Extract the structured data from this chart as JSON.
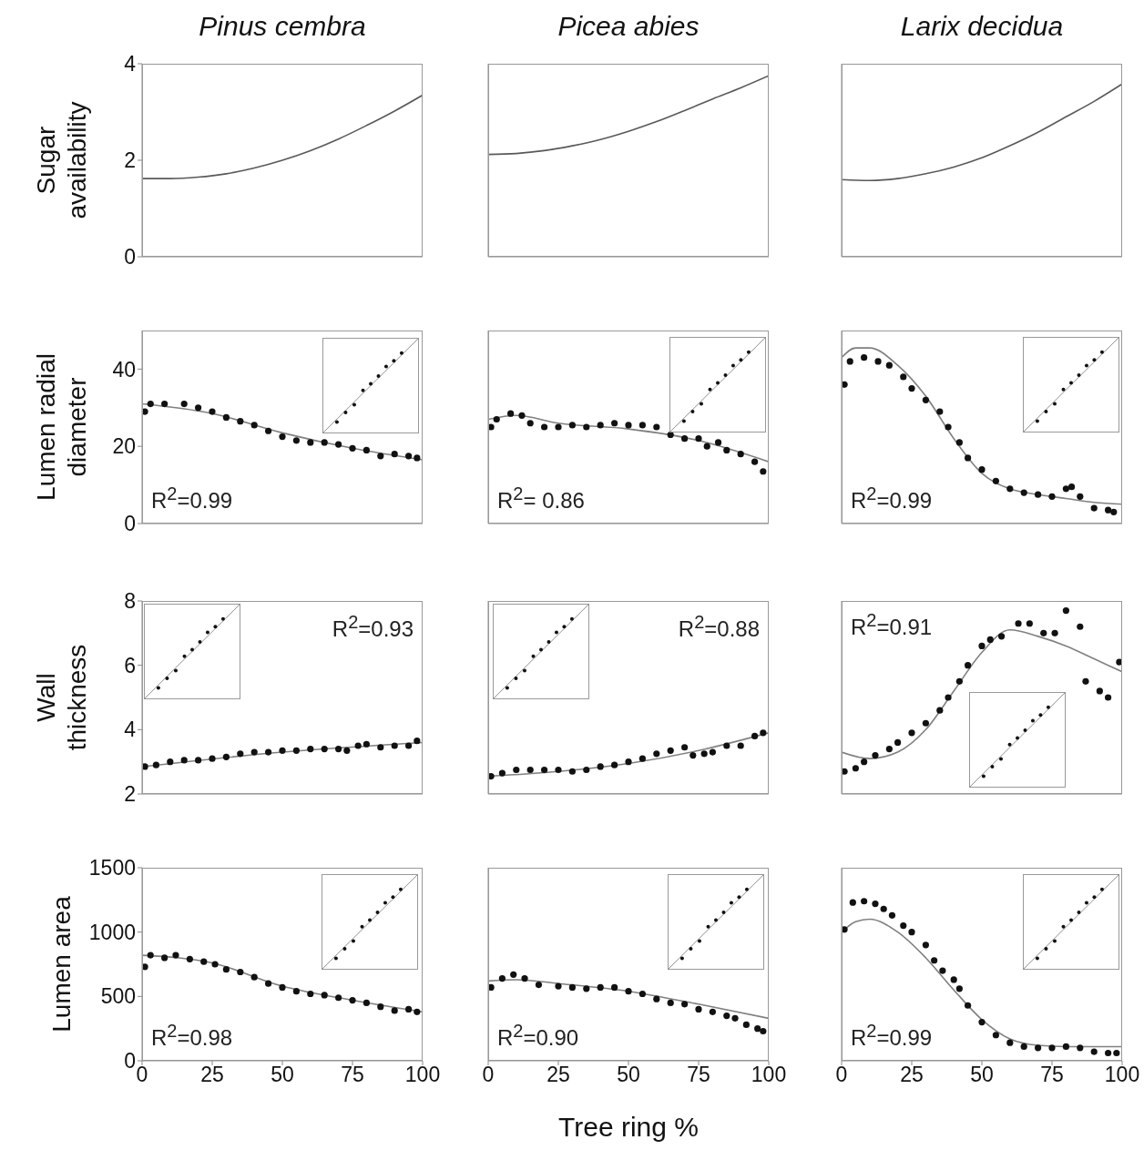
{
  "chart_data": [
    {
      "type": "line",
      "title": "Pinus cembra",
      "ylabel": "Sugar\navailability",
      "xlim": [
        0,
        100
      ],
      "xticks": [
        0,
        25,
        50,
        75,
        100
      ],
      "ylim": [
        0,
        4
      ],
      "yticks": [
        0,
        2,
        4
      ],
      "tick_labels": "y",
      "series": [
        {
          "color": "#595959",
          "x": [
            0,
            10,
            20,
            30,
            40,
            50,
            60,
            70,
            80,
            90,
            100
          ],
          "values": [
            1.62,
            1.62,
            1.65,
            1.72,
            1.84,
            2.0,
            2.2,
            2.44,
            2.72,
            3.02,
            3.35
          ]
        }
      ]
    },
    {
      "type": "line",
      "title": "Picea abies",
      "xlim": [
        0,
        100
      ],
      "xticks": [
        0,
        25,
        50,
        75,
        100
      ],
      "ylim": [
        0,
        4
      ],
      "yticks": [
        0,
        2,
        4
      ],
      "tick_labels": false,
      "series": [
        {
          "color": "#595959",
          "x": [
            0,
            10,
            20,
            30,
            40,
            50,
            60,
            70,
            80,
            90,
            100
          ],
          "values": [
            2.12,
            2.14,
            2.2,
            2.3,
            2.43,
            2.6,
            2.8,
            3.03,
            3.27,
            3.5,
            3.75
          ]
        }
      ]
    },
    {
      "type": "line",
      "title": "Larix decidua",
      "xlim": [
        0,
        100
      ],
      "xticks": [
        0,
        25,
        50,
        75,
        100
      ],
      "ylim": [
        0,
        4
      ],
      "yticks": [
        0,
        2,
        4
      ],
      "tick_labels": false,
      "series": [
        {
          "color": "#595959",
          "x": [
            0,
            10,
            20,
            30,
            40,
            50,
            60,
            70,
            80,
            90,
            100
          ],
          "values": [
            1.6,
            1.58,
            1.62,
            1.72,
            1.86,
            2.05,
            2.3,
            2.58,
            2.9,
            3.22,
            3.58
          ]
        }
      ]
    },
    {
      "type": "scatter",
      "ylabel": "Lumen radial\ndiameter",
      "xlim": [
        0,
        100
      ],
      "xticks": [
        0,
        25,
        50,
        75,
        100
      ],
      "ylim": [
        0,
        50
      ],
      "yticks": [
        0,
        20,
        40
      ],
      "tick_labels": "y",
      "annotations": [
        "R$^{2}$=0.99"
      ],
      "series": [
        {
          "marker": "circle",
          "color": "#111111",
          "x": [
            1,
            3,
            8,
            15,
            20,
            25,
            30,
            35,
            40,
            45,
            50,
            55,
            60,
            65,
            70,
            75,
            80,
            85,
            90,
            95,
            98
          ],
          "values": [
            29,
            31,
            31,
            31,
            30,
            29,
            27.5,
            26.5,
            25.5,
            24,
            22.5,
            21.5,
            21,
            21,
            20.5,
            19.5,
            19,
            17.5,
            18,
            17.5,
            17
          ]
        },
        {
          "type": "line",
          "color": "#808080",
          "x": [
            0,
            25,
            50,
            75,
            100
          ],
          "values": [
            31,
            28.5,
            23.5,
            19.5,
            16.5
          ]
        }
      ]
    },
    {
      "type": "scatter",
      "xlim": [
        0,
        100
      ],
      "xticks": [
        0,
        25,
        50,
        75,
        100
      ],
      "ylim": [
        0,
        50
      ],
      "yticks": [
        0,
        20,
        40
      ],
      "tick_labels": false,
      "annotations": [
        "R$^{2}$= 0.86"
      ],
      "series": [
        {
          "marker": "circle",
          "color": "#111111",
          "x": [
            1,
            3,
            8,
            12,
            15,
            20,
            25,
            30,
            35,
            40,
            45,
            50,
            55,
            60,
            65,
            70,
            75,
            78,
            82,
            85,
            90,
            95,
            98
          ],
          "values": [
            25,
            27,
            28.5,
            28,
            26,
            25,
            25,
            25.5,
            25,
            25.5,
            26,
            25.5,
            25.5,
            25,
            23,
            22,
            22,
            20,
            21,
            19,
            18,
            16,
            13.5
          ]
        },
        {
          "type": "line",
          "color": "#808080",
          "x": [
            0,
            10,
            25,
            50,
            75,
            100
          ],
          "values": [
            27,
            28,
            26,
            24.5,
            21.5,
            16
          ]
        }
      ]
    },
    {
      "type": "scatter",
      "xlim": [
        0,
        100
      ],
      "xticks": [
        0,
        25,
        50,
        75,
        100
      ],
      "ylim": [
        0,
        50
      ],
      "yticks": [
        0,
        20,
        40
      ],
      "tick_labels": false,
      "annotations": [
        "R$^{2}$=0.99"
      ],
      "series": [
        {
          "marker": "circle",
          "color": "#111111",
          "x": [
            1,
            3,
            8,
            13,
            17,
            22,
            25,
            30,
            35,
            38,
            42,
            45,
            50,
            55,
            60,
            65,
            70,
            75,
            80,
            82,
            85,
            90,
            95,
            97
          ],
          "values": [
            36,
            42,
            43,
            42,
            41,
            38,
            35,
            32,
            29,
            25,
            21,
            17,
            14,
            11,
            9,
            8,
            7.5,
            7,
            9,
            9.5,
            7,
            4,
            3.5,
            3
          ]
        },
        {
          "type": "line",
          "color": "#808080",
          "x": [
            0,
            5,
            10,
            20,
            30,
            40,
            50,
            60,
            70,
            80,
            90,
            100
          ],
          "values": [
            43,
            45.5,
            45.5,
            41,
            33,
            22,
            13,
            9,
            7.5,
            6.5,
            5.5,
            5
          ]
        }
      ]
    },
    {
      "type": "scatter",
      "ylabel": "Wall\nthickness",
      "xlim": [
        0,
        100
      ],
      "xticks": [
        0,
        25,
        50,
        75,
        100
      ],
      "ylim": [
        2,
        8
      ],
      "yticks": [
        2,
        4,
        6,
        8
      ],
      "tick_labels": "y",
      "annotations": [
        "R$^{2}$=0.93"
      ],
      "series": [
        {
          "marker": "circle",
          "color": "#111111",
          "x": [
            1,
            5,
            10,
            15,
            20,
            25,
            30,
            35,
            40,
            45,
            50,
            55,
            60,
            65,
            70,
            73,
            77,
            80,
            85,
            90,
            95,
            98
          ],
          "values": [
            2.85,
            2.9,
            3.0,
            3.05,
            3.05,
            3.1,
            3.15,
            3.25,
            3.3,
            3.3,
            3.35,
            3.35,
            3.4,
            3.4,
            3.4,
            3.35,
            3.5,
            3.55,
            3.45,
            3.5,
            3.5,
            3.65
          ]
        },
        {
          "type": "line",
          "color": "#808080",
          "x": [
            0,
            50,
            100
          ],
          "values": [
            2.85,
            3.3,
            3.6
          ]
        }
      ]
    },
    {
      "type": "scatter",
      "xlim": [
        0,
        100
      ],
      "xticks": [
        0,
        25,
        50,
        75,
        100
      ],
      "ylim": [
        2,
        8
      ],
      "yticks": [
        2,
        4,
        6,
        8
      ],
      "tick_labels": false,
      "annotations": [
        "R$^{2}$=0.88"
      ],
      "series": [
        {
          "marker": "circle",
          "color": "#111111",
          "x": [
            1,
            5,
            10,
            15,
            20,
            25,
            30,
            35,
            40,
            45,
            50,
            55,
            60,
            65,
            70,
            73,
            77,
            80,
            85,
            90,
            95,
            98
          ],
          "values": [
            2.55,
            2.65,
            2.75,
            2.75,
            2.75,
            2.75,
            2.7,
            2.75,
            2.85,
            2.9,
            3.0,
            3.1,
            3.25,
            3.35,
            3.45,
            3.2,
            3.25,
            3.3,
            3.5,
            3.5,
            3.8,
            3.9
          ]
        },
        {
          "type": "line",
          "color": "#808080",
          "x": [
            0,
            25,
            50,
            75,
            100
          ],
          "values": [
            2.55,
            2.7,
            2.95,
            3.35,
            3.9
          ]
        }
      ]
    },
    {
      "type": "scatter",
      "xlim": [
        0,
        100
      ],
      "xticks": [
        0,
        25,
        50,
        75,
        100
      ],
      "ylim": [
        2,
        8
      ],
      "yticks": [
        2,
        4,
        6,
        8
      ],
      "tick_labels": false,
      "annotations": [
        "R$^{2}$=0.91"
      ],
      "series": [
        {
          "marker": "circle",
          "color": "#111111",
          "x": [
            1,
            5,
            8,
            12,
            17,
            20,
            25,
            30,
            35,
            38,
            42,
            45,
            50,
            53,
            57,
            63,
            67,
            72,
            76,
            80,
            85,
            87,
            92,
            95,
            99
          ],
          "values": [
            2.7,
            2.8,
            3.0,
            3.2,
            3.4,
            3.6,
            3.9,
            4.2,
            4.6,
            5.0,
            5.5,
            6.0,
            6.6,
            6.8,
            6.9,
            7.3,
            7.3,
            7.0,
            7.0,
            7.7,
            7.2,
            5.5,
            5.2,
            5.0,
            6.1
          ]
        },
        {
          "type": "line",
          "color": "#808080",
          "x": [
            0,
            10,
            20,
            30,
            40,
            50,
            60,
            70,
            80,
            90,
            100
          ],
          "values": [
            3.3,
            3.1,
            3.3,
            4.0,
            5.2,
            6.4,
            7.1,
            6.9,
            6.6,
            6.2,
            5.8
          ]
        }
      ]
    },
    {
      "type": "scatter",
      "ylabel": "Lumen area",
      "xlim": [
        0,
        100
      ],
      "xticks": [
        0,
        25,
        50,
        75,
        100
      ],
      "ylim": [
        0,
        1500
      ],
      "yticks": [
        0,
        500,
        1000,
        1500
      ],
      "annotations": [
        "R$^{2}$=0.98"
      ],
      "series": [
        {
          "marker": "circle",
          "color": "#111111",
          "x": [
            1,
            3,
            8,
            12,
            17,
            22,
            26,
            30,
            35,
            40,
            45,
            50,
            55,
            60,
            65,
            70,
            75,
            80,
            85,
            90,
            95,
            98
          ],
          "values": [
            730,
            820,
            800,
            820,
            790,
            770,
            750,
            710,
            690,
            650,
            600,
            570,
            540,
            520,
            510,
            490,
            470,
            450,
            420,
            390,
            400,
            380
          ]
        },
        {
          "type": "line",
          "color": "#808080",
          "x": [
            0,
            25,
            50,
            75,
            100
          ],
          "values": [
            820,
            760,
            580,
            470,
            380
          ]
        }
      ]
    },
    {
      "type": "scatter",
      "xlabel": "Tree ring %",
      "xlim": [
        0,
        100
      ],
      "xticks": [
        0,
        25,
        50,
        75,
        100
      ],
      "ylim": [
        0,
        1500
      ],
      "yticks": [
        0,
        500,
        1000,
        1500
      ],
      "tick_labels": "x",
      "annotations": [
        "R$^{2}$=0.90"
      ],
      "series": [
        {
          "marker": "circle",
          "color": "#111111",
          "x": [
            1,
            5,
            9,
            13,
            18,
            25,
            30,
            35,
            40,
            45,
            50,
            55,
            60,
            65,
            70,
            75,
            80,
            85,
            88,
            92,
            96,
            98
          ],
          "values": [
            570,
            640,
            670,
            640,
            590,
            580,
            570,
            560,
            570,
            570,
            540,
            520,
            480,
            450,
            440,
            400,
            380,
            350,
            330,
            280,
            250,
            230
          ]
        },
        {
          "type": "line",
          "color": "#808080",
          "x": [
            0,
            10,
            25,
            50,
            75,
            100
          ],
          "values": [
            620,
            630,
            600,
            540,
            440,
            330
          ]
        }
      ]
    },
    {
      "type": "scatter",
      "xlim": [
        0,
        100
      ],
      "xticks": [
        0,
        25,
        50,
        75,
        100
      ],
      "ylim": [
        0,
        1500
      ],
      "yticks": [
        0,
        500,
        1000,
        1500
      ],
      "tick_labels": "x",
      "annotations": [
        "R$^{2}$=0.99"
      ],
      "series": [
        {
          "marker": "circle",
          "color": "#111111",
          "x": [
            1,
            4,
            8,
            12,
            15,
            18,
            22,
            25,
            30,
            33,
            36,
            40,
            42,
            45,
            50,
            55,
            60,
            65,
            70,
            75,
            80,
            85,
            90,
            95,
            98
          ],
          "values": [
            1020,
            1230,
            1240,
            1220,
            1180,
            1130,
            1050,
            1000,
            900,
            780,
            700,
            630,
            560,
            430,
            300,
            200,
            140,
            110,
            100,
            100,
            110,
            100,
            70,
            60,
            60
          ]
        },
        {
          "type": "line",
          "color": "#808080",
          "x": [
            0,
            5,
            10,
            20,
            30,
            40,
            50,
            60,
            70,
            80,
            100
          ],
          "values": [
            1000,
            1080,
            1100,
            1000,
            800,
            550,
            320,
            170,
            120,
            110,
            110
          ]
        }
      ]
    }
  ]
}
